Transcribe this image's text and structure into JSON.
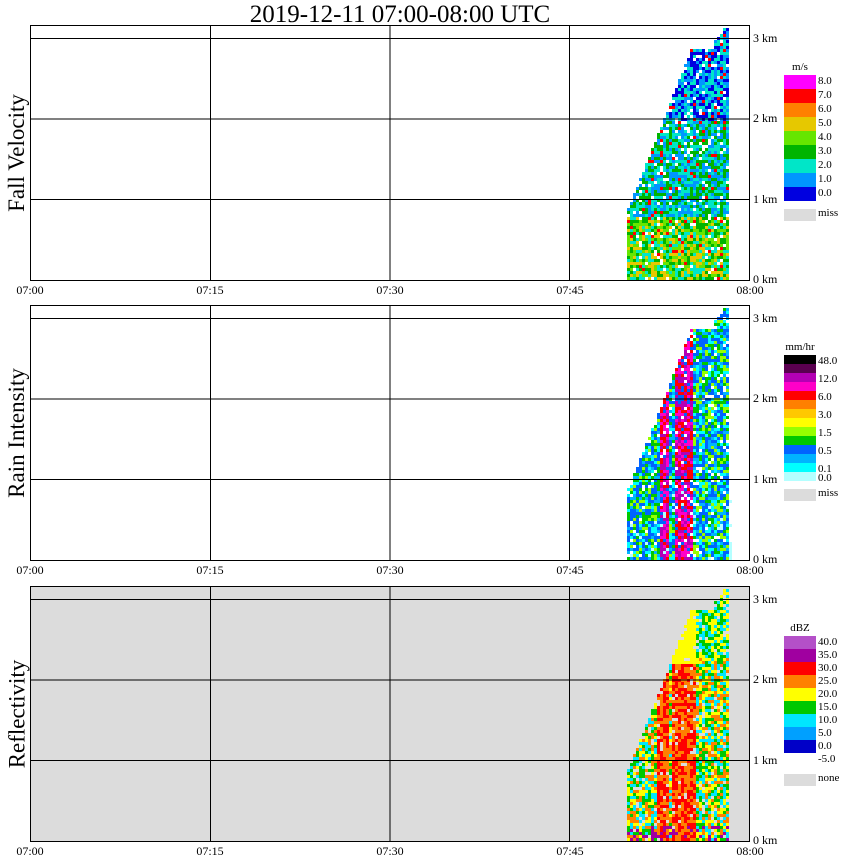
{
  "title": "2019-12-11   07:00-08:00 UTC",
  "chart_data": [
    {
      "type": "heatmap",
      "ylabel": "Fall Velocity",
      "unit": "m/s",
      "x_ticks": [
        "07:00",
        "07:15",
        "07:30",
        "07:45",
        "08:00"
      ],
      "height_ticks": [
        "3 km",
        "2 km",
        "1 km",
        "0 km"
      ],
      "legend": [
        {
          "label": "8.0",
          "color": "#ff00ff"
        },
        {
          "label": "7.0",
          "color": "#ff0000"
        },
        {
          "label": "6.0",
          "color": "#ff8000"
        },
        {
          "label": "5.0",
          "color": "#e6c800"
        },
        {
          "label": "4.0",
          "color": "#66e600"
        },
        {
          "label": "3.0",
          "color": "#00b400"
        },
        {
          "label": "2.0",
          "color": "#00e6c8"
        },
        {
          "label": "1.0",
          "color": "#0096ff"
        },
        {
          "label": "0.0",
          "color": "#0000e0"
        }
      ],
      "missing": {
        "label": "miss",
        "color": "#dcdcdc"
      },
      "background": "#ffffff"
    },
    {
      "type": "heatmap",
      "ylabel": "Rain Intensity",
      "unit": "mm/hr",
      "x_ticks": [
        "07:00",
        "07:15",
        "07:30",
        "07:45",
        "08:00"
      ],
      "height_ticks": [
        "3 km",
        "2 km",
        "1 km",
        "0 km"
      ],
      "legend": [
        {
          "label": "48.0",
          "color": "#000000"
        },
        {
          "label": "",
          "color": "#5a0050"
        },
        {
          "label": "12.0",
          "color": "#b400b4"
        },
        {
          "label": "",
          "color": "#ff00c8"
        },
        {
          "label": "6.0",
          "color": "#ff0000"
        },
        {
          "label": "",
          "color": "#ff8000"
        },
        {
          "label": "3.0",
          "color": "#ffc800"
        },
        {
          "label": "",
          "color": "#ffff00"
        },
        {
          "label": "1.5",
          "color": "#96ff00"
        },
        {
          "label": "",
          "color": "#00c800"
        },
        {
          "label": "0.5",
          "color": "#0064ff"
        },
        {
          "label": "",
          "color": "#00b4ff"
        },
        {
          "label": "0.1",
          "color": "#00ffff"
        },
        {
          "label": "0.0",
          "color": "#b4ffff"
        }
      ],
      "missing": {
        "label": "miss",
        "color": "#dcdcdc"
      },
      "background": "#ffffff"
    },
    {
      "type": "heatmap",
      "ylabel": "Reflectivity",
      "unit": "dBZ",
      "x_ticks": [
        "07:00",
        "07:15",
        "07:30",
        "07:45",
        "08:00"
      ],
      "height_ticks": [
        "3 km",
        "2 km",
        "1 km",
        "0 km"
      ],
      "legend": [
        {
          "label": "40.0",
          "color": "#b450c8"
        },
        {
          "label": "35.0",
          "color": "#a000a0"
        },
        {
          "label": "30.0",
          "color": "#ff0000"
        },
        {
          "label": "25.0",
          "color": "#ff8000"
        },
        {
          "label": "20.0",
          "color": "#ffff00"
        },
        {
          "label": "15.0",
          "color": "#00c800"
        },
        {
          "label": "10.0",
          "color": "#00e6ff"
        },
        {
          "label": "5.0",
          "color": "#00a0ff"
        },
        {
          "label": "0.0",
          "color": "#0000c8"
        },
        {
          "label": "-5.0",
          "color": "#ffffff"
        }
      ],
      "missing": {
        "label": "none",
        "color": "#dcdcdc"
      },
      "background": "#dcdcdc"
    }
  ]
}
